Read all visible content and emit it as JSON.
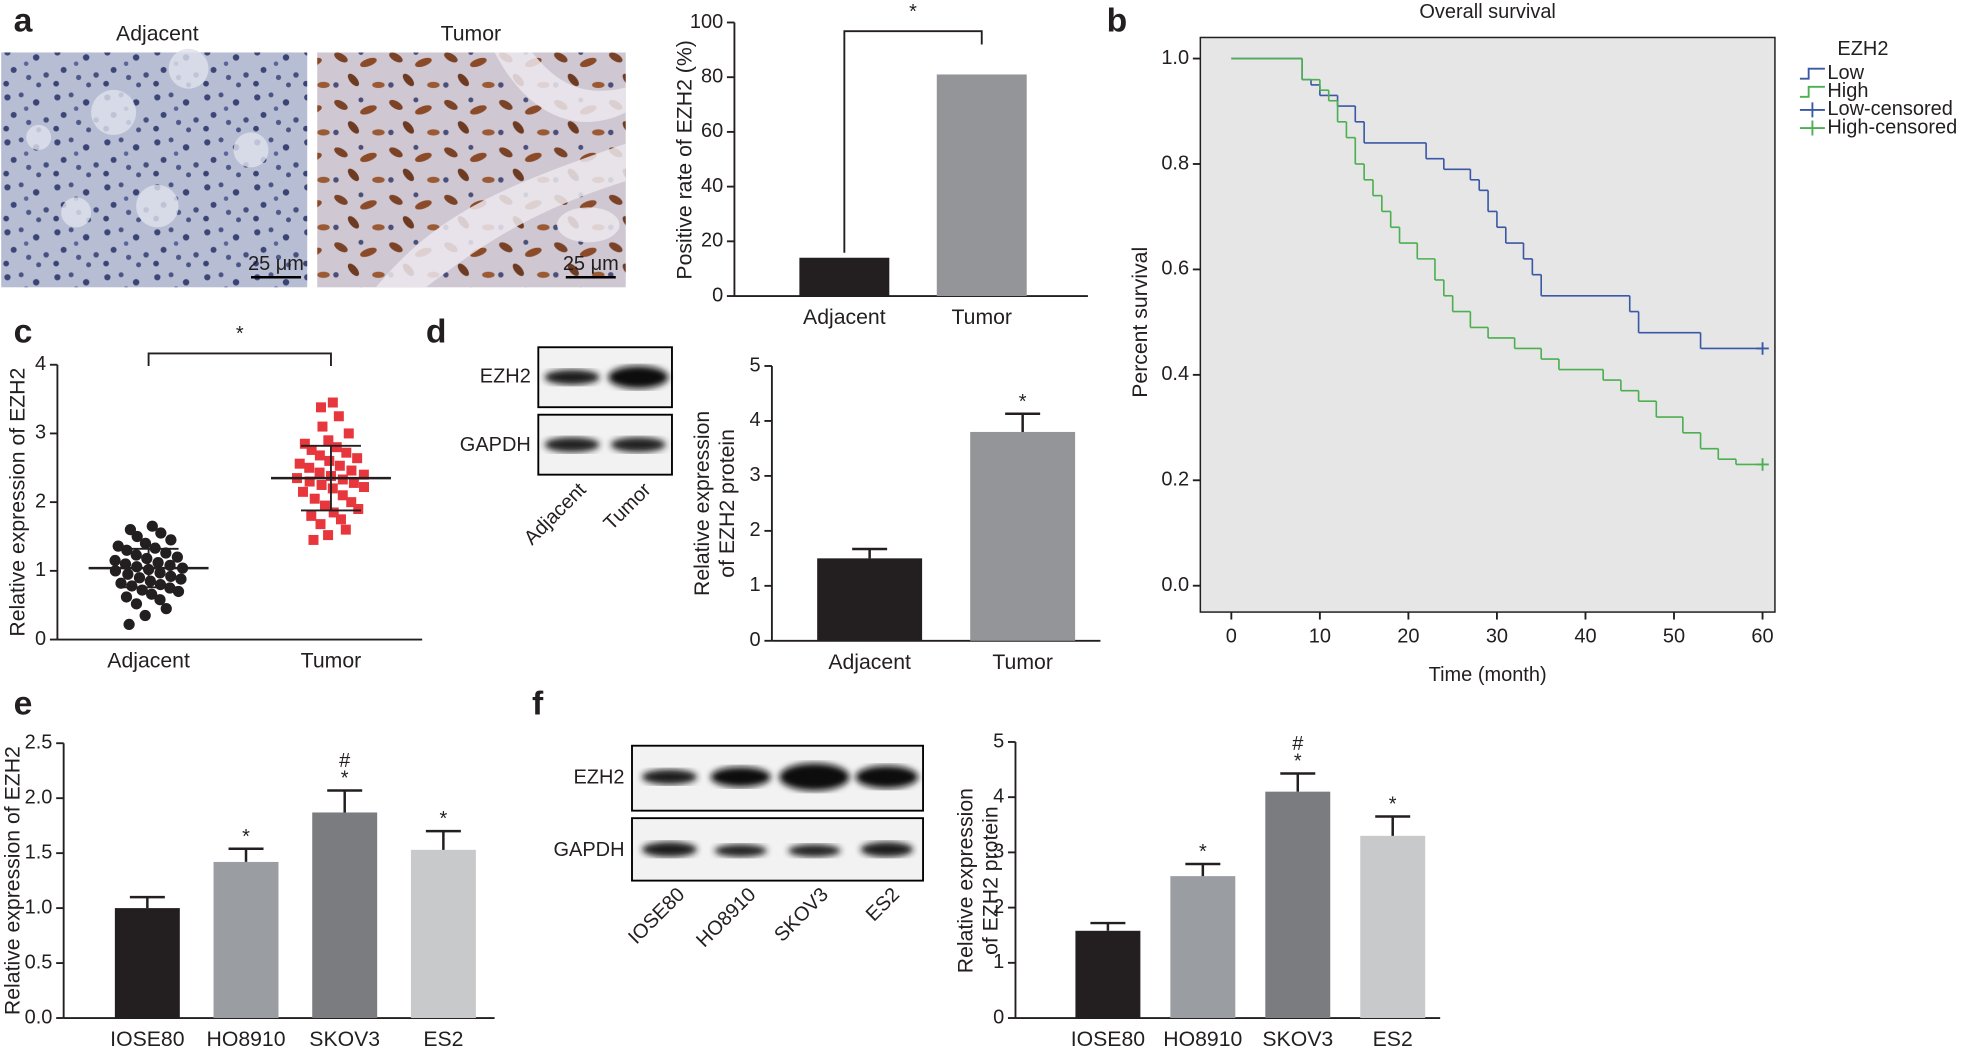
{
  "panels": [
    "a",
    "b",
    "c",
    "d",
    "e",
    "f"
  ],
  "ihc": {
    "labels": [
      "Adjacent",
      "Tumor"
    ],
    "scale_bar": "25 μm"
  },
  "blot_d": {
    "rows": [
      "EZH2",
      "GAPDH"
    ],
    "lanes": [
      "Adjacent",
      "Tumor"
    ]
  },
  "blot_f": {
    "rows": [
      "EZH2",
      "GAPDH"
    ],
    "lanes": [
      "IOSE80",
      "HO8910",
      "SKOV3",
      "ES2"
    ]
  },
  "chart_data": [
    {
      "type": "bar",
      "y_label": "Positive rate of EZH2 (%)",
      "categories": [
        "Adjacent",
        "Tumor"
      ],
      "values": [
        14,
        81
      ],
      "colors": [
        "#231f20",
        "#939598"
      ],
      "ylim": [
        0,
        100
      ],
      "yticks": [
        0,
        20,
        40,
        60,
        80,
        100
      ],
      "bracket_label": "*"
    },
    {
      "type": "line",
      "step": true,
      "title": "Overall survival",
      "x_label": "Time (month)",
      "y_label": "Percent survival",
      "legend_title": "EZH2",
      "legend": "outside-right",
      "xlim": [
        -3.5,
        61.4
      ],
      "xticks": [
        0,
        10,
        20,
        30,
        40,
        50,
        60
      ],
      "ylim": [
        -0.05,
        1.04
      ],
      "yticks": [
        {
          "value": 0,
          "label": "0.0"
        },
        0.2,
        0.4,
        0.6,
        0.8,
        {
          "value": 1,
          "label": "1.0"
        }
      ],
      "series": [
        {
          "name": "Low",
          "color": "#3a58a6",
          "x": [
            0,
            8,
            9,
            10,
            12,
            14,
            15,
            22,
            24,
            27,
            28,
            29,
            30,
            31,
            33,
            34,
            35,
            45,
            46,
            53,
            60
          ],
          "y": [
            1.0,
            0.96,
            0.95,
            0.93,
            0.91,
            0.88,
            0.84,
            0.81,
            0.79,
            0.77,
            0.75,
            0.71,
            0.68,
            0.65,
            0.62,
            0.59,
            0.55,
            0.52,
            0.48,
            0.45,
            0.45
          ]
        },
        {
          "name": "High",
          "color": "#4caf50",
          "x": [
            0,
            8,
            10,
            11,
            12,
            13,
            14,
            15,
            16,
            17,
            18,
            19,
            21,
            23,
            24,
            25,
            27,
            29,
            32,
            35,
            37,
            42,
            44,
            46,
            48,
            51,
            53,
            55,
            57,
            60
          ],
          "y": [
            1.0,
            0.96,
            0.94,
            0.92,
            0.88,
            0.85,
            0.8,
            0.77,
            0.74,
            0.71,
            0.68,
            0.65,
            0.62,
            0.58,
            0.55,
            0.52,
            0.49,
            0.47,
            0.45,
            0.43,
            0.41,
            0.39,
            0.37,
            0.35,
            0.32,
            0.29,
            0.26,
            0.24,
            0.23,
            0.23
          ]
        },
        {
          "name": "Low-censored",
          "color": "#3a58a6",
          "marker": "+",
          "x": [
            60
          ],
          "y": [
            0.45
          ]
        },
        {
          "name": "High-censored",
          "color": "#4caf50",
          "marker": "+",
          "x": [
            60
          ],
          "y": [
            0.23
          ]
        }
      ]
    },
    {
      "type": "scatter",
      "y_label": "Relative expression of EZH2",
      "categories": [
        "Adjacent",
        "Tumor"
      ],
      "values": [
        [
          0.22,
          0.35,
          0.45,
          0.52,
          0.58,
          0.62,
          0.66,
          0.7,
          0.72,
          0.75,
          0.78,
          0.8,
          0.82,
          0.85,
          0.88,
          0.9,
          0.92,
          0.95,
          0.97,
          1.0,
          1.02,
          1.04,
          1.06,
          1.08,
          1.1,
          1.12,
          1.15,
          1.18,
          1.2,
          1.23,
          1.26,
          1.3,
          1.33,
          1.36,
          1.4,
          1.45,
          1.5,
          1.55,
          1.6,
          1.65
        ],
        [
          1.45,
          1.52,
          1.6,
          1.68,
          1.75,
          1.8,
          1.85,
          1.9,
          1.95,
          2.0,
          2.05,
          2.1,
          2.15,
          2.2,
          2.22,
          2.25,
          2.28,
          2.3,
          2.33,
          2.35,
          2.38,
          2.4,
          2.43,
          2.46,
          2.5,
          2.53,
          2.56,
          2.6,
          2.64,
          2.68,
          2.72,
          2.76,
          2.8,
          2.85,
          2.9,
          3.0,
          3.1,
          3.25,
          3.38,
          3.45
        ]
      ],
      "means": [
        1.04,
        2.35
      ],
      "sds": [
        0.28,
        0.47
      ],
      "colors": [
        "#231f20",
        "#e8363d"
      ],
      "markers": [
        "circle",
        "square"
      ],
      "ylim": [
        0,
        4
      ],
      "yticks": [
        0,
        1,
        2,
        3,
        4
      ],
      "bracket_label": "*"
    },
    {
      "type": "bar",
      "y_label": [
        "Relative expression",
        "of EZH2 protein"
      ],
      "categories": [
        "Adjacent",
        "Tumor"
      ],
      "values": [
        1.5,
        3.8
      ],
      "errors": [
        0.17,
        0.33
      ],
      "colors": [
        "#231f20",
        "#939598"
      ],
      "significance": [
        null,
        "*"
      ],
      "ylim": [
        0,
        5
      ],
      "yticks": [
        0,
        1,
        2,
        3,
        4,
        5
      ]
    },
    {
      "type": "bar",
      "y_label": "Relative expression of EZH2",
      "categories": [
        "IOSE80",
        "HO8910",
        "SKOV3",
        "ES2"
      ],
      "values": [
        1.0,
        1.42,
        1.87,
        1.53
      ],
      "errors": [
        0.1,
        0.12,
        0.2,
        0.17
      ],
      "colors": [
        "#231f20",
        "#9a9ea3",
        "#7b7c80",
        "#c8c9cb"
      ],
      "significance": [
        null,
        "*",
        "*",
        "*"
      ],
      "significance2": [
        null,
        null,
        "#",
        null
      ],
      "ylim": [
        0,
        2.5
      ],
      "yticks": [
        {
          "value": 0,
          "label": "0.0"
        },
        0.5,
        {
          "value": 1,
          "label": "1.0"
        },
        1.5,
        {
          "value": 2,
          "label": "2.0"
        },
        2.5
      ]
    },
    {
      "type": "bar",
      "y_label": [
        "Relative expression",
        "of EZH2 protein"
      ],
      "categories": [
        "IOSE80",
        "HO8910",
        "SKOV3",
        "ES2"
      ],
      "values": [
        1.58,
        2.57,
        4.1,
        3.3
      ],
      "errors": [
        0.14,
        0.22,
        0.33,
        0.35
      ],
      "colors": [
        "#231f20",
        "#9a9ea3",
        "#7b7c80",
        "#c8c9cb"
      ],
      "significance": [
        null,
        "*",
        "*",
        "*"
      ],
      "significance2": [
        null,
        null,
        "#",
        null
      ],
      "ylim": [
        0,
        5
      ],
      "yticks": [
        0,
        1,
        2,
        3,
        4,
        5
      ]
    }
  ]
}
